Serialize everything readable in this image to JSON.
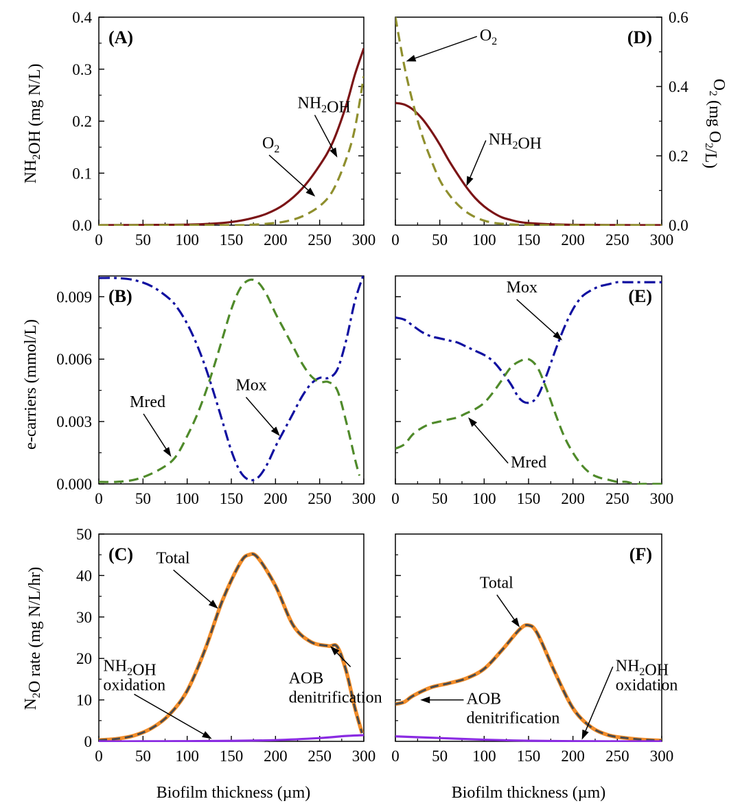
{
  "figure": {
    "xlabel": "Biofilm thickness (µm)",
    "ylabel_A": "NH₂OH (mg N/L)",
    "ylabel_D_right": "O₂ (mg O₂/L)",
    "ylabel_B": "e-carriers (mmol/L)",
    "ylabel_C": "N₂O rate (mg N/L/hr)"
  },
  "colors": {
    "nh2oh": "#7b1416",
    "o2": "#8f8f2e",
    "mox": "#1010a0",
    "mred": "#4f8a2a",
    "total_orange": "#f28c28",
    "total_dash": "#4a4a4a",
    "nh2oh_oxidation": "#8a2be2"
  },
  "chart_data": [
    {
      "panel": "A",
      "label": "(A)",
      "type": "line",
      "xlim": [
        0,
        300
      ],
      "ylim": [
        0,
        0.4
      ],
      "y2lim": [
        0,
        0.6
      ],
      "xticks": [
        0,
        50,
        100,
        150,
        200,
        250,
        300
      ],
      "yticks": [
        "0.0",
        "0.1",
        "0.2",
        "0.3",
        "0.4"
      ],
      "series": [
        {
          "name": "NH2OH",
          "axis": "left",
          "style": "solid",
          "x": [
            0,
            50,
            100,
            130,
            150,
            170,
            190,
            210,
            230,
            250,
            265,
            280,
            290,
            300
          ],
          "y": [
            0,
            0.0003,
            0.001,
            0.003,
            0.006,
            0.012,
            0.022,
            0.04,
            0.07,
            0.115,
            0.16,
            0.23,
            0.29,
            0.34
          ]
        },
        {
          "name": "O2",
          "axis": "right",
          "style": "dashed",
          "x": [
            0,
            150,
            170,
            190,
            210,
            230,
            250,
            265,
            280,
            290,
            300
          ],
          "y": [
            0,
            0,
            0.001,
            0.004,
            0.01,
            0.025,
            0.055,
            0.1,
            0.19,
            0.28,
            0.43
          ]
        }
      ],
      "annotations": [
        {
          "label": "NH₂OH",
          "text_x": 225,
          "text_y": 0.225,
          "arrow_x": 270,
          "arrow_y": 0.13
        },
        {
          "label": "O₂",
          "text_x": 185,
          "text_y": 0.148,
          "arrow_x": 245,
          "arrow_y": 0.055
        }
      ]
    },
    {
      "panel": "D",
      "label": "(D)",
      "type": "line",
      "xlim": [
        0,
        300
      ],
      "ylim": [
        0,
        0.4
      ],
      "y2lim": [
        0,
        0.6
      ],
      "xticks": [
        0,
        50,
        100,
        150,
        200,
        250,
        300
      ],
      "y2ticks": [
        "0.0",
        "0.2",
        "0.4",
        "0.6"
      ],
      "series": [
        {
          "name": "NH2OH",
          "axis": "left",
          "style": "solid",
          "x": [
            0,
            10,
            20,
            30,
            40,
            50,
            60,
            70,
            80,
            90,
            100,
            110,
            120,
            130,
            140,
            150,
            170,
            190,
            210,
            250,
            300
          ],
          "y": [
            0.235,
            0.232,
            0.222,
            0.205,
            0.182,
            0.155,
            0.125,
            0.098,
            0.073,
            0.052,
            0.036,
            0.024,
            0.015,
            0.01,
            0.006,
            0.004,
            0.002,
            0.001,
            0.0005,
            0.0002,
            0
          ]
        },
        {
          "name": "O2",
          "axis": "right",
          "style": "dashed",
          "x": [
            0,
            10,
            20,
            30,
            40,
            50,
            60,
            70,
            80,
            90,
            100,
            110,
            120,
            130,
            140,
            160,
            200,
            300
          ],
          "y": [
            0.6,
            0.46,
            0.35,
            0.26,
            0.19,
            0.13,
            0.09,
            0.06,
            0.038,
            0.023,
            0.013,
            0.007,
            0.004,
            0.002,
            0.001,
            0.0003,
            0,
            0
          ]
        }
      ],
      "annotations": [
        {
          "label": "O₂",
          "text_x": 95,
          "text_y": 0.355,
          "arrow_x": 12,
          "arrow_y": 0.315
        },
        {
          "label": "NH₂OH",
          "text_x": 105,
          "text_y": 0.155,
          "arrow_x": 80,
          "arrow_y": 0.075
        }
      ]
    },
    {
      "panel": "B",
      "label": "(B)",
      "type": "line",
      "xlim": [
        0,
        300
      ],
      "ylim": [
        0,
        0.01
      ],
      "xticks": [
        0,
        50,
        100,
        150,
        200,
        250,
        300
      ],
      "yticks": [
        "0.000",
        "0.003",
        "0.006",
        "0.009"
      ],
      "series": [
        {
          "name": "Mox",
          "style": "dashdot",
          "x": [
            0,
            20,
            40,
            60,
            80,
            90,
            100,
            110,
            120,
            130,
            140,
            150,
            160,
            170,
            180,
            190,
            200,
            210,
            220,
            230,
            240,
            250,
            260,
            270,
            280,
            290,
            300
          ],
          "y": [
            0.0099,
            0.0099,
            0.0098,
            0.0095,
            0.0089,
            0.0084,
            0.0077,
            0.0068,
            0.0057,
            0.0044,
            0.003,
            0.0016,
            0.0006,
            0.0002,
            0.0003,
            0.0009,
            0.0018,
            0.0026,
            0.0034,
            0.0042,
            0.0048,
            0.0051,
            0.0051,
            0.0055,
            0.0069,
            0.0088,
            0.0101
          ]
        },
        {
          "name": "Mred",
          "style": "dashed",
          "x": [
            0,
            20,
            40,
            60,
            80,
            90,
            100,
            110,
            120,
            130,
            140,
            150,
            160,
            170,
            180,
            190,
            200,
            210,
            220,
            230,
            240,
            250,
            260,
            270,
            280,
            290,
            295
          ],
          "y": [
            0.0001,
            0.0001,
            0.0002,
            0.0005,
            0.001,
            0.0015,
            0.0023,
            0.0032,
            0.0043,
            0.0056,
            0.007,
            0.0084,
            0.0094,
            0.0098,
            0.0097,
            0.0091,
            0.0082,
            0.0074,
            0.0066,
            0.0058,
            0.0052,
            0.0049,
            0.0049,
            0.0045,
            0.003,
            0.0012,
            0.0004
          ]
        }
      ],
      "annotations": [
        {
          "label": "Mred",
          "text_x": 35,
          "text_y": 0.0037,
          "arrow_x": 82,
          "arrow_y": 0.0013
        },
        {
          "label": "Mox",
          "text_x": 155,
          "text_y": 0.0045,
          "arrow_x": 205,
          "arrow_y": 0.0023
        }
      ]
    },
    {
      "panel": "E",
      "label": "(E)",
      "type": "line",
      "xlim": [
        0,
        300
      ],
      "ylim": [
        0,
        0.01
      ],
      "xticks": [
        0,
        50,
        100,
        150,
        200,
        250,
        300
      ],
      "series": [
        {
          "name": "Mox",
          "style": "dashdot",
          "x": [
            0,
            10,
            20,
            30,
            40,
            50,
            60,
            70,
            80,
            90,
            100,
            110,
            120,
            130,
            140,
            150,
            160,
            170,
            180,
            190,
            200,
            210,
            220,
            230,
            240,
            250,
            260,
            270,
            280,
            290,
            300
          ],
          "y": [
            0.008,
            0.0079,
            0.0076,
            0.0073,
            0.0071,
            0.007,
            0.0069,
            0.0068,
            0.0066,
            0.0064,
            0.0062,
            0.0059,
            0.0054,
            0.0048,
            0.0041,
            0.0039,
            0.0042,
            0.0052,
            0.0064,
            0.0075,
            0.0084,
            0.009,
            0.0093,
            0.0095,
            0.0096,
            0.0097,
            0.0097,
            0.0097,
            0.0097,
            0.0097,
            0.0097
          ]
        },
        {
          "name": "Mred",
          "style": "dashed",
          "x": [
            0,
            10,
            20,
            30,
            40,
            50,
            60,
            70,
            80,
            90,
            100,
            110,
            120,
            130,
            140,
            150,
            160,
            170,
            180,
            190,
            200,
            210,
            220,
            230,
            240,
            250,
            260,
            270,
            280,
            290,
            300
          ],
          "y": [
            0.0017,
            0.0019,
            0.0024,
            0.0027,
            0.0029,
            0.003,
            0.0031,
            0.0032,
            0.0034,
            0.0036,
            0.0039,
            0.0044,
            0.005,
            0.0056,
            0.0059,
            0.006,
            0.0056,
            0.0046,
            0.0034,
            0.0023,
            0.0015,
            0.0009,
            0.0005,
            0.0003,
            0.0002,
            0.0001,
            0.0001,
            0,
            0,
            0,
            0
          ]
        }
      ],
      "annotations": [
        {
          "label": "Mox",
          "text_x": 125,
          "text_y": 0.0092,
          "arrow_x": 188,
          "arrow_y": 0.0069
        },
        {
          "label": "Mred",
          "text_x": 130,
          "text_y": 0.0008,
          "arrow_x": 82,
          "arrow_y": 0.0032
        }
      ]
    },
    {
      "panel": "C",
      "label": "(C)",
      "type": "line",
      "xlim": [
        0,
        300
      ],
      "ylim": [
        0,
        50
      ],
      "xticks": [
        0,
        50,
        100,
        150,
        200,
        250,
        300
      ],
      "yticks": [
        "0",
        "10",
        "20",
        "30",
        "40",
        "50"
      ],
      "series": [
        {
          "name": "Total",
          "style": "solid+dashed",
          "x": [
            0,
            20,
            40,
            60,
            80,
            100,
            120,
            140,
            160,
            170,
            180,
            200,
            220,
            240,
            260,
            270,
            280,
            290,
            298
          ],
          "y": [
            0.3,
            0.6,
            1.4,
            3.2,
            6.5,
            12.2,
            22,
            34,
            43,
            45,
            44.3,
            37.5,
            28,
            24,
            23,
            22.8,
            17,
            8,
            2
          ]
        },
        {
          "name": "NH2OH oxidation",
          "style": "solid",
          "x": [
            0,
            50,
            100,
            150,
            200,
            250,
            280,
            300
          ],
          "y": [
            0,
            0.02,
            0.05,
            0.12,
            0.3,
            0.8,
            1.3,
            1.5
          ]
        }
      ],
      "annotations": [
        {
          "label": "Total",
          "text_x": 65,
          "text_y": 43,
          "arrow_x": 135,
          "arrow_y": 32
        },
        {
          "label": "AOB",
          "label2": "denitrification",
          "text_x": 215,
          "text_y": 14,
          "arrow_x": 262,
          "arrow_y": 23
        },
        {
          "label": "NH₂OH",
          "label2": "oxidation",
          "text_x": 5,
          "text_y": 17,
          "arrow_x": 128,
          "arrow_y": 0.6
        }
      ]
    },
    {
      "panel": "F",
      "label": "(F)",
      "type": "line",
      "xlim": [
        0,
        300
      ],
      "ylim": [
        0,
        50
      ],
      "xticks": [
        0,
        50,
        100,
        150,
        200,
        250,
        300
      ],
      "series": [
        {
          "name": "Total",
          "style": "solid+dashed",
          "x": [
            0,
            10,
            20,
            40,
            60,
            80,
            100,
            120,
            140,
            150,
            160,
            180,
            200,
            220,
            240,
            260,
            280,
            300
          ],
          "y": [
            9,
            9.5,
            11,
            13,
            14,
            15.2,
            17.5,
            22,
            27,
            28,
            26,
            16.5,
            8,
            3.5,
            1.5,
            0.8,
            0.4,
            0.2
          ]
        },
        {
          "name": "NH2OH oxidation",
          "style": "solid",
          "x": [
            0,
            50,
            100,
            150,
            200,
            250,
            300
          ],
          "y": [
            1.2,
            0.8,
            0.4,
            0.15,
            0.05,
            0.01,
            0
          ]
        }
      ],
      "annotations": [
        {
          "label": "Total",
          "text_x": 95,
          "text_y": 37,
          "arrow_x": 140,
          "arrow_y": 27.5
        },
        {
          "label": "AOB",
          "label2": "denitrification",
          "text_x": 80,
          "text_y": 9,
          "arrow_x": 28,
          "arrow_y": 10
        },
        {
          "label": "NH₂OH",
          "label2": "oxidation",
          "text_x": 248,
          "text_y": 17,
          "arrow_x": 210,
          "arrow_y": 0.4
        }
      ]
    }
  ]
}
